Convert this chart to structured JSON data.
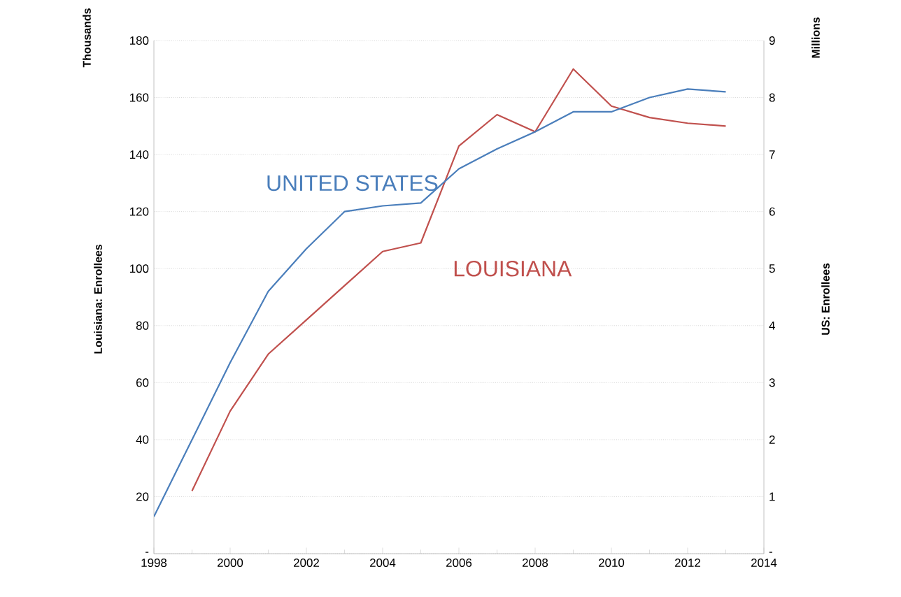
{
  "chart_data": {
    "type": "line",
    "ylabel": "Louisiana: Enrollees",
    "y2label": "US: Enrollees",
    "annotations": [
      "Thousands",
      "Millions"
    ],
    "x": [
      1998,
      1999,
      2000,
      2001,
      2002,
      2003,
      2004,
      2005,
      2006,
      2007,
      2008,
      2009,
      2010,
      2011,
      2012,
      2013
    ],
    "series": [
      {
        "name": "UNITED STATES",
        "color": "#4a7ebb",
        "axis": "y2",
        "values": [
          0.65,
          2.0,
          3.35,
          4.6,
          5.35,
          6.0,
          6.1,
          6.15,
          6.75,
          7.1,
          7.4,
          7.75,
          7.75,
          8.0,
          8.15,
          8.1
        ]
      },
      {
        "name": "LOUISIANA",
        "color": "#c0504d",
        "values": [
          null,
          22,
          50,
          70,
          82,
          94,
          106,
          109,
          143,
          154,
          148,
          170,
          157,
          153,
          151,
          150
        ]
      }
    ],
    "xlim": [
      1998,
      2014
    ],
    "xticks": [
      1998,
      2000,
      2002,
      2004,
      2006,
      2008,
      2010,
      2012,
      2014
    ],
    "ylim": [
      0,
      180
    ],
    "yticks": [
      {
        "value": 0,
        "label": "-"
      },
      20,
      40,
      60,
      80,
      100,
      120,
      140,
      160,
      180
    ],
    "y2lim": [
      0,
      9
    ],
    "y2ticks": [
      {
        "value": 0,
        "label": "-"
      },
      1,
      2,
      3,
      4,
      5,
      6,
      7,
      8,
      9
    ],
    "grid": "y",
    "legend": false,
    "marker": "none",
    "line_style": "solid"
  }
}
